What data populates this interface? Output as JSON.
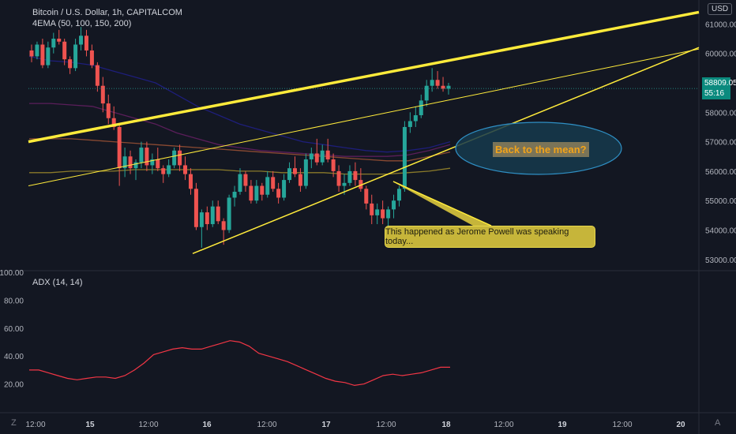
{
  "header": {
    "symbol": "Bitcoin / U.S. Dollar, 1h, CAPITALCOM",
    "indicator": "4EMA (50, 100, 150, 200)",
    "currency_button": "USD"
  },
  "annotations": {
    "callout": "This happened as Jerome Powell was speaking today...",
    "ellipse_label": "Back to the mean?"
  },
  "price_tag": {
    "price": "58809.05",
    "countdown": "55:16"
  },
  "bottom_corner": {
    "left": "Z",
    "right": "A"
  },
  "colors": {
    "background": "#131722",
    "up": "#26a69a",
    "down": "#ef5350",
    "trendline": "#ffeb3b",
    "adx": "#f23645",
    "ema50": "#1e1e7a",
    "ema100": "#5a1e5a",
    "ema150": "#8a4a32",
    "ema200": "#8a7a2a"
  },
  "chart_data": [
    {
      "type": "candlestick",
      "title": "Bitcoin / U.S. Dollar, 1h, CAPITALCOM",
      "ylim": [
        52700,
        61600
      ],
      "y_ticks": [
        "53000.00",
        "54000.00",
        "55000.00",
        "56000.00",
        "57000.00",
        "58000.00",
        "60000.00",
        "61000.00"
      ],
      "x_ticks": [
        "12:00",
        "15",
        "12:00",
        "16",
        "12:00",
        "17",
        "12:00",
        "18",
        "12:00",
        "19",
        "12:00",
        "20"
      ],
      "ohlc": [
        [
          60100,
          60300,
          59700,
          59900
        ],
        [
          59900,
          60400,
          59800,
          60300
        ],
        [
          60300,
          60500,
          59500,
          59600
        ],
        [
          59600,
          60400,
          59500,
          60200
        ],
        [
          60200,
          60700,
          60000,
          60500
        ],
        [
          60500,
          60800,
          60300,
          60400
        ],
        [
          60400,
          60500,
          59600,
          59800
        ],
        [
          59800,
          59900,
          59300,
          59500
        ],
        [
          59500,
          60500,
          59400,
          60300
        ],
        [
          60300,
          60900,
          60100,
          60600
        ],
        [
          60600,
          60800,
          59900,
          60100
        ],
        [
          60100,
          60300,
          59500,
          59600
        ],
        [
          59600,
          59700,
          58700,
          58900
        ],
        [
          58900,
          59200,
          58000,
          58300
        ],
        [
          58300,
          58600,
          57600,
          57800
        ],
        [
          57800,
          58200,
          57400,
          57500
        ],
        [
          57500,
          57600,
          55500,
          56100
        ],
        [
          56100,
          56800,
          55800,
          56500
        ],
        [
          56500,
          56700,
          55900,
          56100
        ],
        [
          56100,
          56400,
          55700,
          56300
        ],
        [
          56300,
          57000,
          56100,
          56800
        ],
        [
          56800,
          57000,
          56000,
          56200
        ],
        [
          56200,
          56600,
          55900,
          56400
        ],
        [
          56400,
          56800,
          56000,
          56100
        ],
        [
          56100,
          56200,
          55600,
          55900
        ],
        [
          55900,
          56400,
          55800,
          56200
        ],
        [
          56200,
          56800,
          56100,
          56700
        ],
        [
          56700,
          56900,
          56000,
          56200
        ],
        [
          56200,
          56500,
          55700,
          55900
        ],
        [
          55900,
          56100,
          55200,
          55400
        ],
        [
          55400,
          55600,
          54000,
          54100
        ],
        [
          54100,
          54700,
          53400,
          54600
        ],
        [
          54600,
          54800,
          54000,
          54200
        ],
        [
          54200,
          55000,
          54100,
          54800
        ],
        [
          54800,
          55000,
          54200,
          54300
        ],
        [
          54300,
          54400,
          53500,
          54000
        ],
        [
          54000,
          55200,
          53900,
          55100
        ],
        [
          55100,
          55500,
          54800,
          55300
        ],
        [
          55300,
          56100,
          55200,
          55900
        ],
        [
          55900,
          56000,
          55300,
          55500
        ],
        [
          55500,
          55700,
          54900,
          55000
        ],
        [
          55000,
          55700,
          54900,
          55500
        ],
        [
          55500,
          55600,
          55000,
          55200
        ],
        [
          55200,
          56000,
          55100,
          55800
        ],
        [
          55800,
          56000,
          55300,
          55400
        ],
        [
          55400,
          55600,
          54900,
          55100
        ],
        [
          55100,
          55900,
          55000,
          55700
        ],
        [
          55700,
          56300,
          55600,
          56100
        ],
        [
          56100,
          56500,
          55800,
          55900
        ],
        [
          55900,
          56100,
          55300,
          55500
        ],
        [
          55500,
          56600,
          55400,
          56400
        ],
        [
          56400,
          56800,
          56100,
          56600
        ],
        [
          56600,
          57100,
          56200,
          56300
        ],
        [
          56300,
          56900,
          56200,
          56700
        ],
        [
          56700,
          57100,
          56300,
          56400
        ],
        [
          56400,
          56600,
          55800,
          56000
        ],
        [
          56000,
          56200,
          55300,
          55500
        ],
        [
          55500,
          55900,
          55200,
          55600
        ],
        [
          55600,
          56200,
          55500,
          56000
        ],
        [
          56000,
          56300,
          55500,
          55700
        ],
        [
          55700,
          56100,
          55300,
          55400
        ],
        [
          55400,
          55500,
          54700,
          54900
        ],
        [
          54900,
          55200,
          54200,
          54500
        ],
        [
          54500,
          54900,
          54200,
          54700
        ],
        [
          54700,
          55000,
          54200,
          54400
        ],
        [
          54400,
          54800,
          54100,
          54700
        ],
        [
          54700,
          55200,
          54400,
          55000
        ],
        [
          55000,
          55500,
          54800,
          55400
        ],
        [
          55400,
          57700,
          55300,
          57500
        ],
        [
          57500,
          58000,
          57300,
          57700
        ],
        [
          57700,
          58200,
          57500,
          57900
        ],
        [
          57900,
          58600,
          57800,
          58400
        ],
        [
          58400,
          59100,
          58200,
          58900
        ],
        [
          58900,
          59500,
          58700,
          59100
        ],
        [
          59100,
          59400,
          58800,
          58900
        ],
        [
          58900,
          59200,
          58700,
          58800
        ],
        [
          58800,
          59000,
          58600,
          58900
        ]
      ],
      "ema_series_values": {
        "EMA50": [
          59900,
          59750,
          59700,
          59600,
          59400,
          59200,
          59000,
          58600,
          58200,
          57900,
          57600,
          57400,
          57200,
          57000,
          56900,
          56800,
          56700,
          56650,
          56700,
          56800,
          57000
        ],
        "EMA100": [
          58300,
          58300,
          58250,
          58200,
          58000,
          57800,
          57600,
          57300,
          57100,
          56900,
          56800,
          56700,
          56650,
          56600,
          56550,
          56500,
          56500,
          56500,
          56550,
          56700,
          56900
        ],
        "EMA150": [
          57100,
          57100,
          57100,
          57050,
          57000,
          56950,
          56900,
          56850,
          56800,
          56750,
          56700,
          56650,
          56600,
          56550,
          56500,
          56450,
          56400,
          56350,
          56350,
          56500,
          56650
        ],
        "EMA200": [
          55950,
          55950,
          56000,
          56000,
          56000,
          56050,
          56050,
          56050,
          56050,
          56050,
          56000,
          56000,
          55950,
          55950,
          55950,
          55900,
          55900,
          55900,
          55950,
          56000,
          56100
        ]
      },
      "trendlines": [
        {
          "name": "upper-thick",
          "y_start": 57000,
          "y_end": 61400
        },
        {
          "name": "channel-upper",
          "y_start": 55500,
          "y_end": 60150
        },
        {
          "name": "support",
          "y_start": 53200,
          "y_end": 60200
        }
      ]
    },
    {
      "type": "line",
      "title": "ADX (14, 14)",
      "ylim": [
        0,
        100
      ],
      "y_ticks": [
        "20.00",
        "40.00",
        "60.00",
        "80.00",
        "100.00"
      ],
      "values": [
        30,
        30,
        28,
        26,
        24,
        23,
        24,
        25,
        25,
        24,
        26,
        30,
        35,
        41,
        43,
        45,
        46,
        45,
        45,
        47,
        49,
        51,
        50,
        47,
        42,
        40,
        38,
        36,
        33,
        30,
        27,
        24,
        22,
        21,
        19,
        20,
        23,
        26,
        27,
        26,
        27,
        28,
        30,
        32,
        32
      ]
    }
  ]
}
